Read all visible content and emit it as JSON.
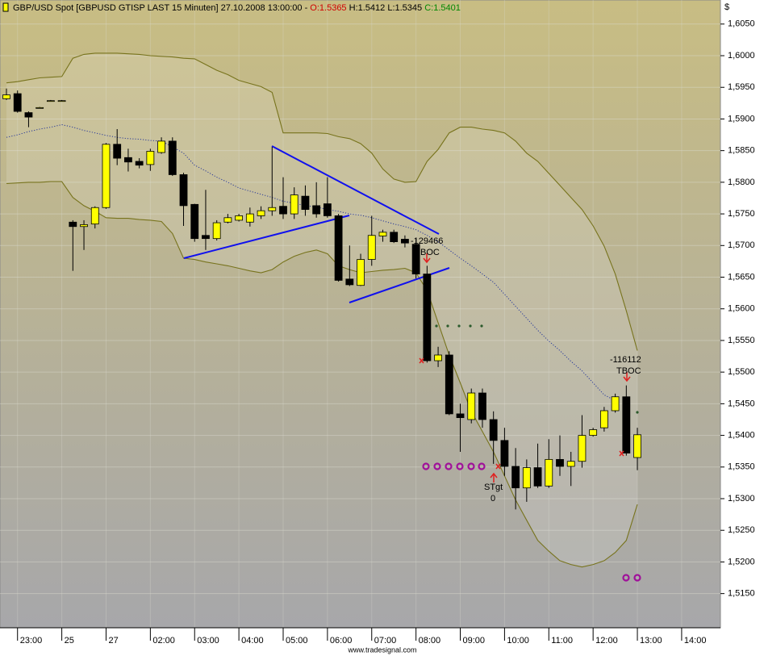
{
  "chart_data": {
    "type": "candlestick",
    "title": "GBP/USD Spot [GBPUSD GTISP LAST 15 Minuten] 27.10.2008 13:00:00 -",
    "open_label": "O:1.5365",
    "hl_label": "H:1.5412 L:1.5345",
    "close_label": "C:1.5401",
    "currency": "$",
    "footer": "www.tradesignal.com",
    "annotations": [
      "-129466",
      "BOC",
      "STgt",
      "0",
      "-116112",
      "TBOC"
    ],
    "categories": [
      null,
      "23:00",
      null,
      null,
      null,
      "25",
      null,
      null,
      null,
      "27",
      null,
      null,
      null,
      "02:00",
      null,
      null,
      null,
      "03:00",
      null,
      null,
      null,
      "04:00",
      null,
      null,
      null,
      "05:00",
      null,
      null,
      null,
      "06:00",
      null,
      null,
      null,
      "07:00",
      null,
      null,
      null,
      "08:00",
      null,
      null,
      null,
      "09:00",
      null,
      null,
      null,
      "10:00",
      null,
      null,
      null,
      "11:00",
      null,
      null,
      null,
      "12:00",
      null,
      null,
      null,
      "13:00",
      null,
      null,
      null,
      "14:00"
    ],
    "open": [
      1.5932,
      1.594,
      1.591,
      1.5918,
      1.5929,
      1.5929,
      1.5737,
      1.573,
      1.5734,
      1.576,
      1.586,
      1.5839,
      1.5833,
      1.5828,
      1.5847,
      1.5865,
      1.5812,
      1.5765,
      1.5716,
      1.5711,
      1.5737,
      1.574,
      1.5737,
      1.5747,
      1.5755,
      1.5762,
      1.575,
      1.5778,
      1.5763,
      1.5766,
      1.5747,
      1.5647,
      1.5637,
      1.5678,
      1.5715,
      1.5721,
      1.571,
      1.5702,
      1.5655,
      1.5518,
      1.5527,
      1.5434,
      1.5425,
      1.5467,
      1.5425,
      1.5392,
      1.5351,
      1.5317,
      1.5349,
      1.532,
      1.5362,
      1.5351,
      1.5359,
      1.54,
      1.5412,
      1.5439,
      1.5461,
      1.5365,
      null,
      null,
      null,
      null
    ],
    "high": [
      1.5948,
      1.5945,
      1.5912,
      1.5919,
      1.593,
      1.593,
      1.574,
      1.574,
      1.5762,
      1.5862,
      1.5884,
      1.5853,
      1.5838,
      1.5853,
      1.5871,
      1.5871,
      1.5815,
      1.5766,
      1.5788,
      1.574,
      1.575,
      1.575,
      1.576,
      1.5762,
      1.5856,
      1.5808,
      1.5792,
      1.5795,
      1.58,
      1.5808,
      1.575,
      1.57,
      1.5687,
      1.5747,
      1.5725,
      1.5725,
      1.5716,
      1.5712,
      1.5668,
      1.554,
      1.5533,
      1.545,
      1.5474,
      1.5474,
      1.5438,
      1.5412,
      1.538,
      1.5362,
      1.5387,
      1.5394,
      1.54,
      1.5374,
      1.5432,
      1.5412,
      1.5445,
      1.5466,
      1.5479,
      1.5412,
      null,
      null,
      null,
      null
    ],
    "low": [
      1.593,
      1.591,
      1.5887,
      1.5917,
      1.5928,
      1.5928,
      1.566,
      1.5693,
      1.5727,
      1.5758,
      1.5827,
      1.5817,
      1.5822,
      1.5818,
      1.5845,
      1.581,
      1.5731,
      1.5706,
      1.5693,
      1.5708,
      1.5735,
      1.5738,
      1.573,
      1.5742,
      1.5747,
      1.5742,
      1.5742,
      1.5747,
      1.5744,
      1.5744,
      1.5643,
      1.5636,
      1.5636,
      1.5668,
      1.5706,
      1.5704,
      1.5697,
      1.5648,
      1.5515,
      1.5508,
      1.5432,
      1.5374,
      1.5419,
      1.5412,
      1.5355,
      1.5336,
      1.5283,
      1.5295,
      1.5317,
      1.5317,
      1.5336,
      1.532,
      1.5349,
      1.5398,
      1.5406,
      1.5436,
      1.5368,
      1.5345,
      null,
      null,
      null,
      null
    ],
    "close": [
      1.5938,
      1.5912,
      1.5903,
      1.5918,
      1.5929,
      1.5929,
      1.573,
      1.5733,
      1.576,
      1.586,
      1.5838,
      1.5832,
      1.5827,
      1.5849,
      1.5865,
      1.5812,
      1.5763,
      1.5711,
      1.5711,
      1.5736,
      1.5744,
      1.5747,
      1.575,
      1.5755,
      1.576,
      1.575,
      1.578,
      1.5757,
      1.575,
      1.5747,
      1.5645,
      1.5638,
      1.5678,
      1.5716,
      1.5721,
      1.5706,
      1.5704,
      1.5655,
      1.5518,
      1.5527,
      1.5434,
      1.5428,
      1.5467,
      1.5425,
      1.5392,
      1.5351,
      1.5317,
      1.5349,
      1.532,
      1.5362,
      1.5351,
      1.5359,
      1.54,
      1.5409,
      1.5439,
      1.5461,
      1.5372,
      1.5401,
      null,
      null,
      null,
      null
    ],
    "bands": {
      "upper": [
        1.5957,
        1.5959,
        1.5962,
        1.5965,
        1.5966,
        1.5967,
        1.5996,
        1.6002,
        1.6004,
        1.6004,
        1.6004,
        1.6003,
        1.6002,
        1.6,
        1.5999,
        1.5998,
        1.5996,
        1.5995,
        1.5986,
        1.5977,
        1.597,
        1.5961,
        1.5956,
        1.5951,
        1.5942,
        1.5878,
        1.5878,
        1.5878,
        1.5878,
        1.5877,
        1.5872,
        1.5869,
        1.5861,
        1.5846,
        1.5821,
        1.5805,
        1.58,
        1.5801,
        1.5833,
        1.5852,
        1.5878,
        1.5887,
        1.5887,
        1.5884,
        1.5882,
        1.5878,
        1.5865,
        1.5846,
        1.5833,
        1.5814,
        1.5795,
        1.5776,
        1.5757,
        1.5731,
        1.5699,
        1.5655,
        1.5597,
        1.5534,
        null,
        null,
        null,
        null
      ],
      "middle": [
        1.5871,
        1.5875,
        1.588,
        1.5884,
        1.5887,
        1.5891,
        1.5887,
        1.5882,
        1.5878,
        1.5874,
        1.5871,
        1.5869,
        1.5868,
        1.5866,
        1.5865,
        1.5856,
        1.5846,
        1.5827,
        1.5818,
        1.5808,
        1.58,
        1.5791,
        1.5786,
        1.5781,
        1.5776,
        1.577,
        1.5767,
        1.5763,
        1.5761,
        1.5757,
        1.5754,
        1.575,
        1.5748,
        1.5744,
        1.5739,
        1.5734,
        1.573,
        1.5725,
        1.5716,
        1.5706,
        1.5693,
        1.568,
        1.5668,
        1.5655,
        1.5642,
        1.5623,
        1.5604,
        1.5585,
        1.5566,
        1.5549,
        1.5534,
        1.5517,
        1.5502,
        1.5483,
        1.5464,
        1.5455,
        null,
        null,
        null,
        null,
        null,
        null
      ],
      "lower": [
        1.5798,
        1.5799,
        1.58,
        1.58,
        1.5801,
        1.5801,
        1.5776,
        1.5763,
        1.5754,
        1.5744,
        1.5743,
        1.5743,
        1.5741,
        1.574,
        1.5738,
        1.5719,
        1.568,
        1.5678,
        1.5674,
        1.5671,
        1.5668,
        1.5664,
        1.566,
        1.5657,
        1.5662,
        1.5674,
        1.5683,
        1.5689,
        1.5693,
        1.5687,
        1.5668,
        1.5662,
        1.5657,
        1.5659,
        1.5661,
        1.5662,
        1.5664,
        1.5657,
        1.5629,
        1.5578,
        1.5527,
        1.5483,
        1.5438,
        1.5406,
        1.5374,
        1.5336,
        1.5298,
        1.5266,
        1.5234,
        1.5217,
        1.5202,
        1.5196,
        1.5192,
        1.5196,
        1.5202,
        1.5215,
        1.5234,
        1.5291,
        null,
        null,
        null,
        null
      ]
    },
    "band_color": "#77731c",
    "middle_color": "#28389a",
    "up_color": "#ffff00",
    "down_color": "#000000",
    "ylim": [
      1.5096,
      1.6088
    ],
    "yticks": [
      {
        "value": 1.515,
        "label": "1,5150"
      },
      {
        "value": 1.52,
        "label": "1,5200"
      },
      {
        "value": 1.525,
        "label": "1,5250"
      },
      {
        "value": 1.53,
        "label": "1,5300"
      },
      {
        "value": 1.535,
        "label": "1,5350"
      },
      {
        "value": 1.54,
        "label": "1,5400"
      },
      {
        "value": 1.545,
        "label": "1,5450"
      },
      {
        "value": 1.55,
        "label": "1,5500"
      },
      {
        "value": 1.555,
        "label": "1,5550"
      },
      {
        "value": 1.56,
        "label": "1,5600"
      },
      {
        "value": 1.565,
        "label": "1,5650"
      },
      {
        "value": 1.57,
        "label": "1,5700"
      },
      {
        "value": 1.575,
        "label": "1,5750"
      },
      {
        "value": 1.58,
        "label": "1,5800"
      },
      {
        "value": 1.585,
        "label": "1,5850"
      },
      {
        "value": 1.59,
        "label": "1,5900"
      },
      {
        "value": 1.595,
        "label": "1,5950"
      },
      {
        "value": 1.6,
        "label": "1,6000"
      },
      {
        "value": 1.605,
        "label": "1,6050"
      }
    ],
    "grid": true
  }
}
